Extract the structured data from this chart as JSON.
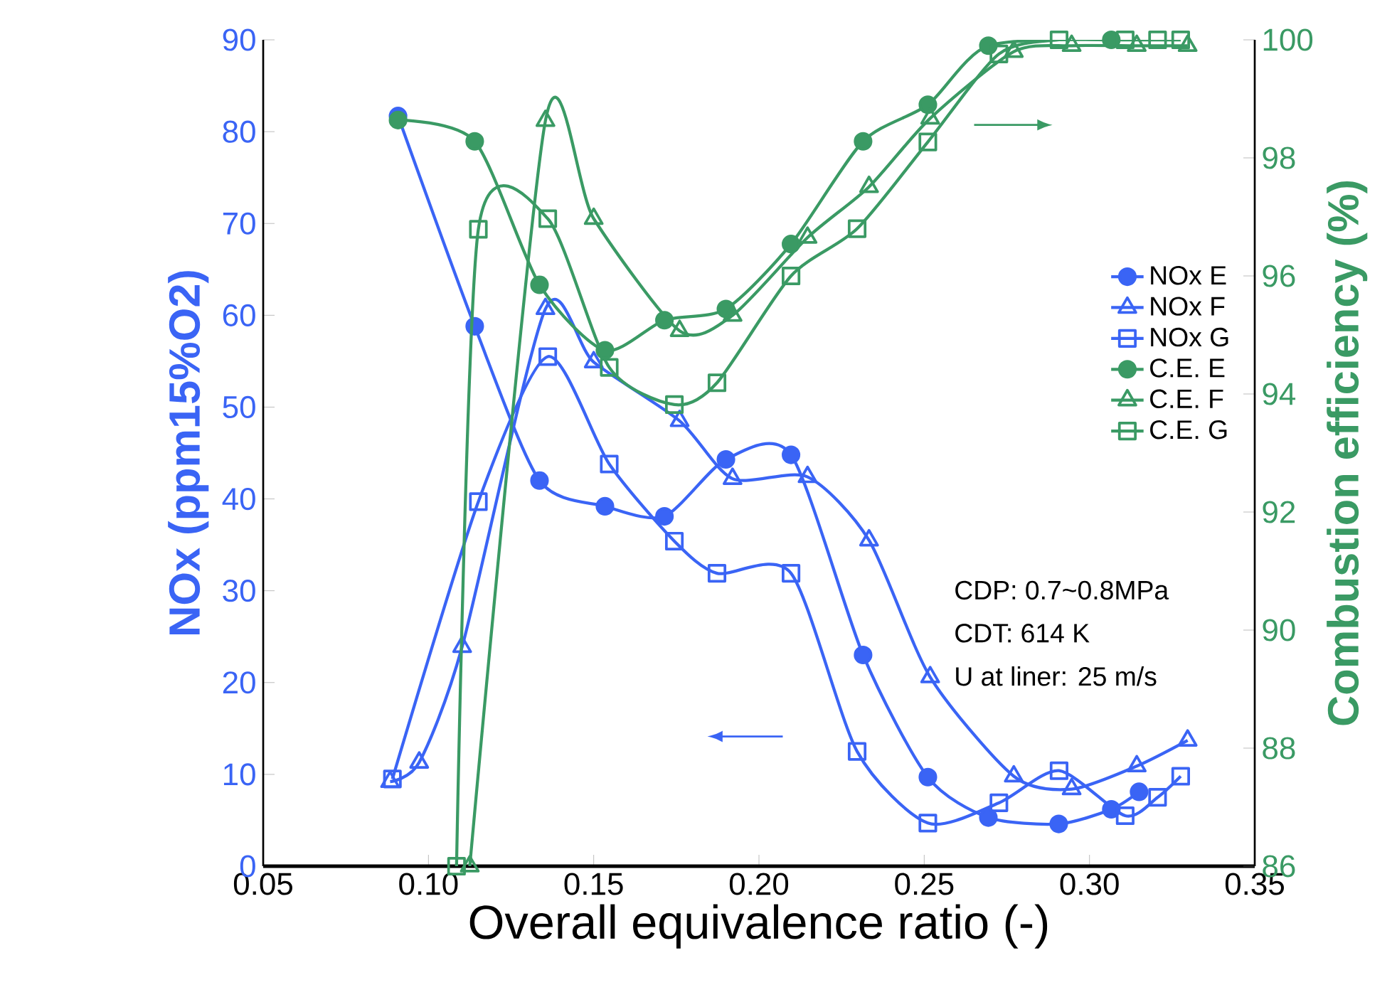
{
  "chart_data": {
    "type": "line",
    "xlabel": "Overall equivalence ratio (-)",
    "ylabel": "NOx (ppm15%O2)",
    "y2label": "Combustion efficiency (%)",
    "xlim": [
      0.05,
      0.35
    ],
    "xticks": [
      0.05,
      {
        "value": 0.1,
        "label": "0.10"
      },
      0.15,
      {
        "value": 0.2,
        "label": "0.20"
      },
      0.25,
      {
        "value": 0.3,
        "label": "0.30"
      },
      0.35
    ],
    "ylim": [
      0,
      90
    ],
    "yticks": [
      0,
      10,
      20,
      30,
      40,
      50,
      60,
      70,
      80,
      90
    ],
    "y2lim": [
      86,
      100
    ],
    "y2ticks": [
      86,
      88,
      90,
      92,
      94,
      96,
      98,
      100
    ],
    "grid": false,
    "legend": "right",
    "annotations": [
      "CDP: 0.7~0.8MPa",
      "CDT: 614 K",
      "U at liner: 25 m/s"
    ],
    "series": [
      {
        "name": "NOx E",
        "color": "#3a64f5",
        "marker": "circle",
        "x": [
          0.0908,
          0.114,
          0.1336,
          0.1534,
          0.1714,
          0.19,
          0.2097,
          0.2315,
          0.2511,
          0.2694,
          0.2907,
          0.3066,
          0.315
        ],
        "values": [
          81.7,
          58.8,
          42.0,
          39.2,
          38.1,
          44.3,
          44.8,
          23.0,
          9.7,
          5.3,
          4.6,
          6.2,
          8.1
        ]
      },
      {
        "name": "NOx F",
        "color": "#3a64f5",
        "marker": "triangle",
        "x": [
          0.0884,
          0.0972,
          0.1102,
          0.1354,
          0.15,
          0.176,
          0.192,
          0.2147,
          0.2333,
          0.2518,
          0.2771,
          0.2946,
          0.3143,
          0.3297
        ],
        "values": [
          9.2,
          11.3,
          23.9,
          60.7,
          54.9,
          48.5,
          42.2,
          42.4,
          35.5,
          20.6,
          9.8,
          8.4,
          10.9,
          13.7
        ]
      },
      {
        "name": "NOx G",
        "color": "#3a64f5",
        "marker": "square",
        "x": [
          0.0891,
          0.1151,
          0.1361,
          0.1547,
          0.1744,
          0.1873,
          0.2097,
          0.2297,
          0.2511,
          0.2726,
          0.2908,
          0.3108,
          0.3206,
          0.3276
        ],
        "values": [
          9.5,
          39.7,
          55.5,
          43.8,
          35.4,
          31.9,
          31.9,
          12.5,
          4.7,
          6.9,
          10.4,
          5.5,
          7.5,
          9.8
        ]
      },
      {
        "name": "C.E. E",
        "color": "#3a9a64",
        "marker": "circle",
        "axis": "y2",
        "x": [
          0.0908,
          0.114,
          0.1336,
          0.1534,
          0.1714,
          0.19,
          0.2097,
          0.2315,
          0.2511,
          0.2694,
          0.3066
        ],
        "values": [
          98.64,
          98.28,
          95.85,
          94.74,
          95.25,
          95.44,
          96.54,
          98.28,
          98.9,
          99.9,
          100
        ]
      },
      {
        "name": "C.E. F",
        "color": "#3a9a64",
        "marker": "triangle",
        "axis": "y2",
        "x": [
          0.1125,
          0.1354,
          0.15,
          0.176,
          0.192,
          0.2147,
          0.2333,
          0.2518,
          0.2771,
          0.2946,
          0.3143,
          0.3297
        ],
        "values": [
          86,
          98.63,
          96.97,
          95.07,
          95.33,
          96.65,
          97.51,
          98.67,
          99.8,
          99.9,
          99.9,
          99.9
        ]
      },
      {
        "name": "C.E. G",
        "color": "#3a9a64",
        "marker": "square",
        "axis": "y2",
        "x": [
          0.1085,
          0.1151,
          0.1361,
          0.1547,
          0.1744,
          0.1873,
          0.2097,
          0.2297,
          0.2511,
          0.2726,
          0.2908,
          0.3108,
          0.3206,
          0.3276
        ],
        "values": [
          86,
          96.79,
          96.97,
          94.45,
          93.82,
          94.19,
          96.0,
          96.8,
          98.27,
          99.76,
          100,
          100,
          100,
          100
        ]
      }
    ]
  }
}
